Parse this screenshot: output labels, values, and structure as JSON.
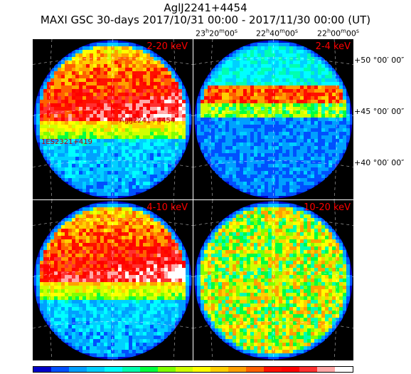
{
  "header": {
    "title": "AglJ2241+4454",
    "subtitle": "MAXI GSC 30-days 2017/10/31 00:00 - 2017/11/30 00:00 (UT)"
  },
  "ra_axis": [
    {
      "h": "23",
      "m": "20",
      "s": "00"
    },
    {
      "h": "22",
      "m": "40",
      "s": "00"
    },
    {
      "h": "22",
      "m": "00",
      "s": "00"
    }
  ],
  "dec_axis": [
    "+50 °00′ 00″",
    "+45 °00′ 00″",
    "+40 °00′ 00″"
  ],
  "panels": [
    {
      "band": "2-20 keV",
      "kind": "gradient"
    },
    {
      "band": "2-4 keV",
      "kind": "soft"
    },
    {
      "band": "4-10 keV",
      "kind": "gradient"
    },
    {
      "band": "10-20 keV",
      "kind": "noise"
    }
  ],
  "sources": [
    {
      "label": "AglJ2241+4454"
    },
    {
      "label": "1ES2321+419"
    }
  ],
  "colorbar": [
    "#0000c8",
    "#0050ff",
    "#00a0ff",
    "#00d0ff",
    "#00ffff",
    "#00ffb0",
    "#00ff40",
    "#80ff00",
    "#d0ff00",
    "#ffff00",
    "#ffd000",
    "#ffa000",
    "#ff6000",
    "#ff1000",
    "#ff0000",
    "#ff3030",
    "#ffa8a8",
    "#ffffff"
  ]
}
